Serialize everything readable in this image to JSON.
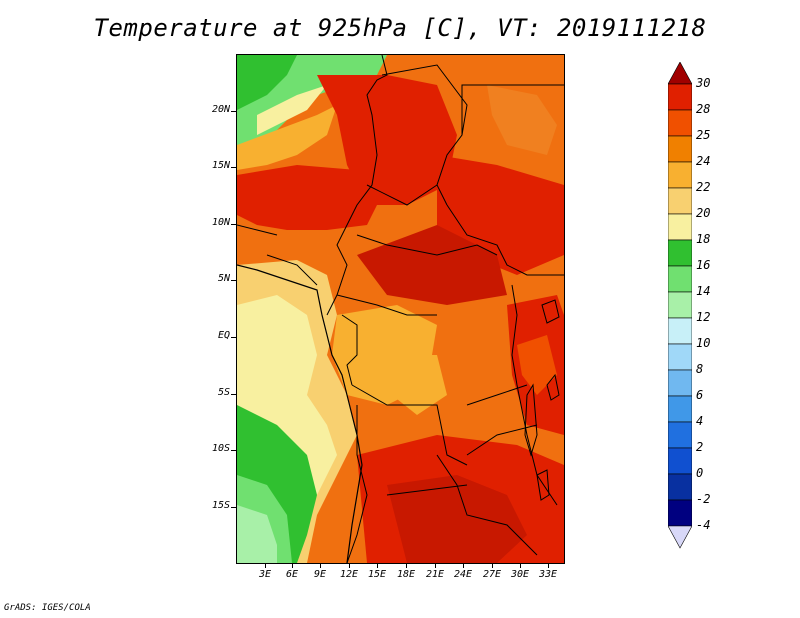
{
  "title": "Temperature at 925hPa [C], VT: 2019111218",
  "footer": "GrADS: IGES/COLA",
  "axes": {
    "y_ticks": [
      "20N",
      "15N",
      "10N",
      "5N",
      "EQ",
      "5S",
      "10S",
      "15S"
    ],
    "x_ticks": [
      "3E",
      "6E",
      "9E",
      "12E",
      "15E",
      "18E",
      "21E",
      "24E",
      "27E",
      "30E",
      "33E"
    ]
  },
  "colorbar": {
    "levels": [
      "30",
      "28",
      "25",
      "24",
      "22",
      "20",
      "18",
      "16",
      "14",
      "12",
      "10",
      "8",
      "6",
      "4",
      "2",
      "0",
      "-2",
      "-4"
    ],
    "colors": [
      "#a00000",
      "#e02000",
      "#f05000",
      "#f08000",
      "#f8b030",
      "#f8d070",
      "#f8f0a0",
      "#30c030",
      "#70e070",
      "#a8f0a8",
      "#c8f0f8",
      "#a0d8f8",
      "#70b8f0",
      "#4098e8",
      "#2070e0",
      "#1050d0",
      "#0830a0",
      "#000080",
      "#d8d8f8"
    ]
  }
}
